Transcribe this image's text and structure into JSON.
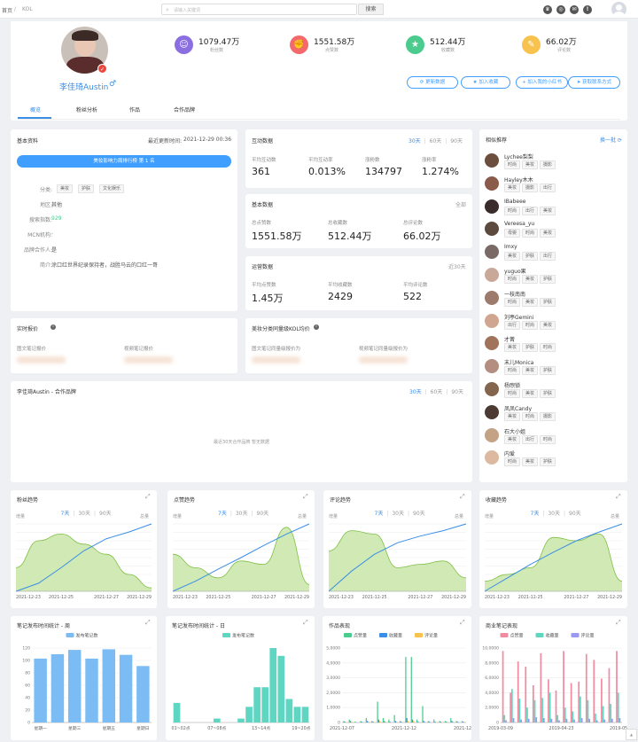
{
  "topbar": {
    "crumb_home": "首页",
    "crumb_sep": "/",
    "crumb_current": "KOL",
    "search_placeholder": "请输入关键词",
    "search_button": "搜索"
  },
  "profile": {
    "name": "李佳琦Austin",
    "gender_symbol": "♂",
    "stats": [
      {
        "value": "1079.47万",
        "label": "粉丝数",
        "color": "#8b6fe0",
        "icon": "user-icon"
      },
      {
        "value": "1551.58万",
        "label": "点赞数",
        "color": "#f4696b",
        "icon": "thumb-icon"
      },
      {
        "value": "512.44万",
        "label": "收藏数",
        "color": "#4ccb8e",
        "icon": "star-icon"
      },
      {
        "value": "66.02万",
        "label": "评论数",
        "color": "#f7c34e",
        "icon": "comment-icon"
      }
    ],
    "actions": [
      "更新数据",
      "加入收藏",
      "加入我的小红书",
      "获取联系方式"
    ],
    "tabs": [
      "概览",
      "粉丝分析",
      "作品",
      "合作品牌"
    ]
  },
  "basic": {
    "title": "基本资料",
    "updated_label": "最近更新时间:",
    "updated": "2021-12-29 00:36",
    "rank_button": "美妆影响力周排行榜 第 1 名",
    "category_label": "分类:",
    "categories": [
      "美妆",
      "护肤",
      "文化娱乐"
    ],
    "region_label": "地区:",
    "region": "其他",
    "rank_label": "搜索指数:",
    "rank": "929",
    "mcn_label": "MCN机构:",
    "mcn": "-",
    "brand_label": "品牌合作人:",
    "brand": "是",
    "intro_label": "简介:",
    "intro": "涂口红世界纪录保持者，战胜马云的口红一哥"
  },
  "interaction": {
    "title": "互动数据",
    "periods": [
      "30天",
      "60天",
      "90天"
    ],
    "items": [
      {
        "label": "平均互动数",
        "value": "361"
      },
      {
        "label": "平均互动率",
        "value": "0.013%"
      },
      {
        "label": "涨粉数",
        "value": "134797"
      },
      {
        "label": "涨粉率",
        "value": "1.274%"
      }
    ]
  },
  "basicdata": {
    "title": "基本数据",
    "scope": "全部",
    "items": [
      {
        "label": "总点赞数",
        "value": "1551.58万"
      },
      {
        "label": "总收藏数",
        "value": "512.44万"
      },
      {
        "label": "总评论数",
        "value": "66.02万"
      }
    ]
  },
  "operation": {
    "title": "运营数据",
    "scope": "近30天",
    "items": [
      {
        "label": "平均点赞数",
        "value": "1.45万"
      },
      {
        "label": "平均收藏数",
        "value": "2429"
      },
      {
        "label": "平均评论数",
        "value": "522"
      }
    ]
  },
  "price": {
    "title": "实时报价",
    "info": "i",
    "items": [
      "图文笔记报价",
      "视频笔记报价"
    ]
  },
  "avgprice": {
    "title": "美妆分类同量级KOL均价",
    "info": "i",
    "items": [
      "图文笔记同量级报价为",
      "视频笔记同量级报价为"
    ]
  },
  "coop": {
    "title": "李佳琦Austin - 合作品牌",
    "periods": [
      "30天",
      "60天",
      "90天"
    ],
    "empty": "最近30天合作品牌 暂无数据"
  },
  "similar": {
    "title": "相似推荐",
    "refresh": "换一批",
    "items": [
      {
        "name": "Lychee梨梨",
        "tags": [
          "时尚",
          "美妆",
          "摄影"
        ],
        "color": "#6b4e3d"
      },
      {
        "name": "Hayley木木",
        "tags": [
          "美妆",
          "摄影",
          "出行"
        ],
        "color": "#8a5a4a"
      },
      {
        "name": "IBabeee",
        "tags": [
          "时尚",
          "出行",
          "美妆"
        ],
        "color": "#3a2c2a"
      },
      {
        "name": "Vereesa_yu",
        "tags": [
          "母婴",
          "时尚",
          "美妆"
        ],
        "color": "#5d4a3e"
      },
      {
        "name": "Imxy",
        "tags": [
          "美妆",
          "护肤",
          "出行"
        ],
        "color": "#7a6a66"
      },
      {
        "name": "yuguo果",
        "tags": [
          "时尚",
          "美妆",
          "护肤"
        ],
        "color": "#c9a89a"
      },
      {
        "name": "一枝南南",
        "tags": [
          "时尚",
          "美妆",
          "护肤"
        ],
        "color": "#9c7a6c"
      },
      {
        "name": "刘亭Gemini",
        "tags": [
          "出行",
          "时尚",
          "美妆"
        ],
        "color": "#d1a690"
      },
      {
        "name": "才菁",
        "tags": [
          "美妆",
          "护肤",
          "时尚"
        ],
        "color": "#a0735a"
      },
      {
        "name": "末儿Monica",
        "tags": [
          "时尚",
          "美妆",
          "护肤"
        ],
        "color": "#b48e80"
      },
      {
        "name": "杨煦锁",
        "tags": [
          "时尚",
          "美妆",
          "护肤"
        ],
        "color": "#84654e"
      },
      {
        "name": "凤凤Candy",
        "tags": [
          "美妆",
          "时尚",
          "摄影"
        ],
        "color": "#4d3b33"
      },
      {
        "name": "石大小姐",
        "tags": [
          "美妆",
          "出行",
          "时尚"
        ],
        "color": "#c4a284"
      },
      {
        "name": "内爱",
        "tags": [
          "时尚",
          "美妆",
          "护肤"
        ],
        "color": "#dcb9a0"
      }
    ]
  },
  "trends": {
    "periods": [
      "7天",
      "30天",
      "90天"
    ],
    "left_axis": "增量",
    "right_axis": "总量",
    "dates": [
      "2021-12-23",
      "2021-12-25",
      "2021-12-27",
      "2021-12-29"
    ],
    "charts": [
      {
        "title": "粉丝趋势",
        "area": [
          0.35,
          0.75,
          0.85,
          0.7,
          0.55,
          0.25,
          0.05
        ],
        "line": [
          0.0,
          0.12,
          0.35,
          0.6,
          0.78,
          0.88,
          1.0
        ]
      },
      {
        "title": "点赞趋势",
        "area": [
          0.55,
          0.35,
          0.2,
          0.45,
          0.4,
          0.95,
          0.1
        ],
        "line": [
          0.0,
          0.15,
          0.33,
          0.5,
          0.68,
          0.85,
          1.0
        ]
      },
      {
        "title": "评论趋势",
        "area": [
          0.6,
          0.9,
          0.85,
          0.35,
          0.4,
          0.45,
          0.2
        ],
        "line": [
          0.0,
          0.3,
          0.55,
          0.72,
          0.82,
          0.9,
          1.0
        ]
      },
      {
        "title": "收藏趋势",
        "area": [
          0.15,
          0.25,
          0.35,
          0.8,
          0.75,
          0.85,
          0.15
        ],
        "line": [
          0.0,
          0.2,
          0.4,
          0.58,
          0.75,
          0.88,
          1.0
        ]
      }
    ]
  },
  "chart_data": [
    {
      "type": "bar",
      "title": "笔记发布时间统计 - 周",
      "series": [
        {
          "name": "发布笔记数",
          "values": [
            103,
            110,
            117,
            103,
            118,
            109,
            91
          ]
        }
      ],
      "categories": [
        "星期一",
        "星期二",
        "星期三",
        "星期四",
        "星期五",
        "星期六",
        "星期日"
      ],
      "tick_labels": [
        "星期一",
        "星期三",
        "星期五",
        "星期日"
      ],
      "ylim": [
        0,
        120
      ],
      "yticks": [
        0,
        20,
        40,
        60,
        80,
        100,
        120
      ],
      "color": "#7cbcf4"
    },
    {
      "type": "bar",
      "title": "笔记发布时间统计 - 日",
      "series": [
        {
          "name": "发布笔记数",
          "values": [
            5,
            0,
            0,
            0,
            0,
            1,
            0,
            0,
            1,
            4,
            9,
            9,
            19,
            17,
            6,
            4,
            4
          ]
        }
      ],
      "tick_labels": [
        "01~02点",
        "07~08点",
        "13~14点",
        "19~20点"
      ],
      "color": "#5fd6c2"
    },
    {
      "type": "bar",
      "title": "作品表现",
      "series": [
        {
          "name": "点赞量",
          "values": [
            0.1,
            0.2,
            0.05,
            0.1,
            0.3,
            0.1,
            1.4,
            0.3,
            0.2,
            0.5,
            0.1,
            4.4,
            4.4,
            0.2,
            1.1,
            0.1,
            0.2,
            0.1,
            0.1,
            0.3,
            0.1,
            0.1
          ]
        },
        {
          "name": "收藏量",
          "values": [
            0.05,
            0.1,
            0.02,
            0.05,
            0.1,
            0.05,
            0.2,
            0.1,
            0.05,
            0.1,
            0.05,
            0.3,
            0.2,
            0.05,
            0.1,
            0.05,
            0.05,
            0.05,
            0.05,
            0.1,
            0.05,
            0.05
          ]
        },
        {
          "name": "评论量",
          "values": [
            0.02,
            0.05,
            0.01,
            0.02,
            0.05,
            0.02,
            0.1,
            0.05,
            0.02,
            0.05,
            0.02,
            0.1,
            0.1,
            0.02,
            0.05,
            0.02,
            0.02,
            0.02,
            0.02,
            0.05,
            0.02,
            0.02
          ]
        }
      ],
      "tick_labels": [
        "2021-12-07",
        "2021-12-12",
        "2021-12-22"
      ],
      "yticks": [
        "0",
        "1,0000",
        "2,0000",
        "3,0000",
        "4,0000",
        "5,0000"
      ],
      "ylim": [
        0,
        5
      ],
      "colors": [
        "#4ccb8e",
        "#3a8ee6",
        "#f7c34e"
      ]
    },
    {
      "type": "bar",
      "title": "商业笔记表现",
      "series": [
        {
          "name": "点赞量",
          "values": [
            9.6,
            4.0,
            8.2,
            7.5,
            5.0,
            9.3,
            5.8,
            4.3,
            9.6,
            5.3,
            5.5,
            9.2,
            8.4,
            5.9,
            7.3,
            9.6
          ]
        },
        {
          "name": "收藏量",
          "values": [
            1.0,
            4.5,
            3.2,
            2.0,
            3.0,
            3.3,
            4.0,
            1.0,
            2.0,
            1.5,
            3.5,
            3.0,
            1.2,
            2.2,
            2.5,
            4.0
          ]
        },
        {
          "name": "评论量",
          "values": [
            0.3,
            0.6,
            0.4,
            0.5,
            0.7,
            0.6,
            0.5,
            0.3,
            0.5,
            0.4,
            0.6,
            0.5,
            0.3,
            0.4,
            0.5,
            0.6
          ]
        }
      ],
      "tick_labels": [
        "2019-03-09",
        "2019-04-23",
        "2019-05-26"
      ],
      "yticks": [
        "0",
        "2,0000",
        "4,0000",
        "6,0000",
        "8,0000",
        "10,0000"
      ],
      "ylim": [
        0,
        10
      ],
      "colors": [
        "#f08ba0",
        "#5fd6c2",
        "#9a9af0"
      ]
    }
  ]
}
